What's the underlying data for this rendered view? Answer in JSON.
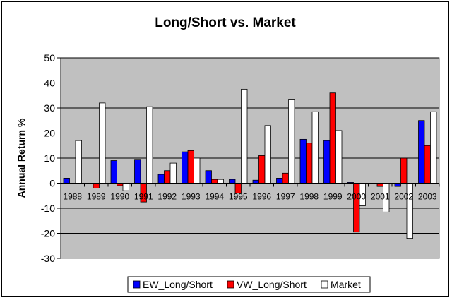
{
  "chart_data": {
    "type": "bar",
    "title": "Long/Short vs. Market",
    "ylabel": "Annual Return %",
    "xlabel": "",
    "ylim": [
      -30,
      50
    ],
    "yticks": [
      50,
      40,
      30,
      20,
      10,
      0,
      -10,
      -20,
      -30
    ],
    "grid": true,
    "legend_position": "bottom",
    "categories": [
      "1988",
      "1989",
      "1990",
      "1991",
      "1992",
      "1993",
      "1994",
      "1995",
      "1996",
      "1997",
      "1998",
      "1999",
      "2000",
      "2001",
      "2002",
      "2003"
    ],
    "series": [
      {
        "name": "EW_Long/Short",
        "color": "#0000ff",
        "values": [
          2,
          0,
          9,
          9.5,
          3.5,
          12.5,
          5,
          1.5,
          1.2,
          2,
          17.5,
          17,
          0.3,
          -0.3,
          -1.3,
          25
        ]
      },
      {
        "name": "VW_Long/Short",
        "color": "#ff0000",
        "values": [
          0,
          -2,
          -1,
          -7.5,
          5,
          13,
          1.5,
          -4,
          11,
          4,
          16,
          36,
          -19.5,
          -1.3,
          10,
          15
        ]
      },
      {
        "name": "Market",
        "color": "#ffffff",
        "values": [
          17,
          32,
          -3,
          30.5,
          8,
          10,
          1.5,
          37.5,
          23,
          33.5,
          28.5,
          21,
          -9,
          -11.5,
          -22,
          28.5
        ]
      }
    ],
    "plot_background": "#c0c0c0"
  }
}
